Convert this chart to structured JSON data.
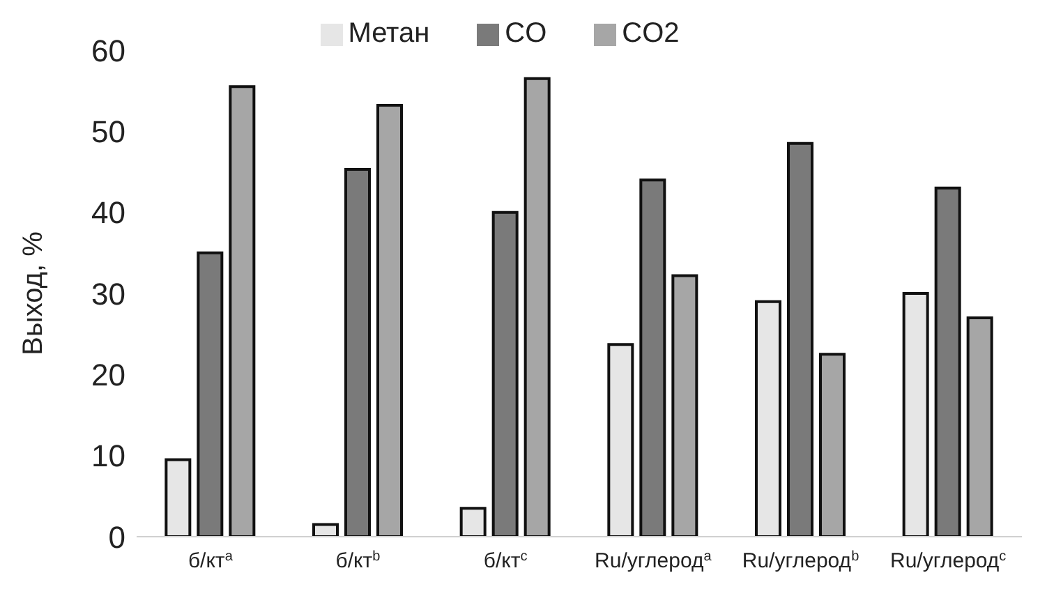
{
  "chart_data": {
    "type": "bar",
    "ylabel": "Выход, %",
    "categories": [
      "б/кт$^{a}$",
      "б/кт$^{b}$",
      "б/кт$^{c}$",
      "Ru/углерод$^{a}$",
      "Ru/углерод$^{b}$",
      "Ru/углерод$^{c}$"
    ],
    "series": [
      {
        "name": "Метан",
        "color": "#e6e6e6",
        "values": [
          9.5,
          1.5,
          3.5,
          23.7,
          29,
          30
        ]
      },
      {
        "name": "CO",
        "color": "#7a7a7a",
        "values": [
          35,
          45.3,
          40,
          44,
          48.5,
          43
        ]
      },
      {
        "name": "CO2",
        "color": "#a6a6a6",
        "values": [
          55.5,
          53.2,
          56.5,
          32.2,
          22.5,
          27
        ]
      }
    ],
    "ylim": [
      0,
      60
    ],
    "yticks": [
      0,
      10,
      20,
      30,
      40,
      50,
      60
    ],
    "grid": false,
    "legend": "top"
  }
}
